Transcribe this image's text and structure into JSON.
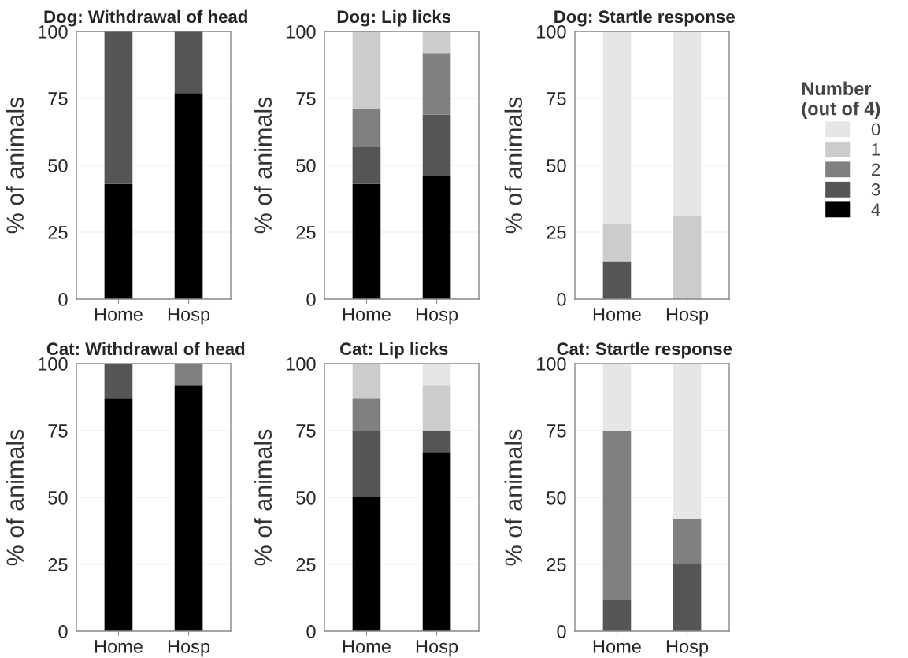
{
  "chart_data": [
    {
      "type": "bar",
      "stacked": true,
      "title": "Dog: Withdrawal of head",
      "ylabel": "% of animals",
      "categories": [
        "Home",
        "Hosp"
      ],
      "ylim": [
        0,
        100
      ],
      "yticks": [
        0,
        25,
        50,
        75,
        100
      ],
      "grid": "y",
      "series": [
        {
          "color": "#000000",
          "values": [
            43,
            77
          ]
        },
        {
          "color": "#555555",
          "values": [
            57,
            23
          ]
        }
      ]
    },
    {
      "type": "bar",
      "stacked": true,
      "title": "Dog: Lip licks",
      "ylabel": "% of animals",
      "categories": [
        "Home",
        "Hosp"
      ],
      "ylim": [
        0,
        100
      ],
      "yticks": [
        0,
        25,
        50,
        75,
        100
      ],
      "grid": "y",
      "series": [
        {
          "color": "#000000",
          "values": [
            43,
            46
          ]
        },
        {
          "color": "#555555",
          "values": [
            14,
            23
          ]
        },
        {
          "color": "#808080",
          "values": [
            14,
            23
          ]
        },
        {
          "color": "#cccccc",
          "values": [
            29,
            8
          ]
        }
      ]
    },
    {
      "type": "bar",
      "stacked": true,
      "title": "Dog: Startle response",
      "ylabel": "% of animals",
      "categories": [
        "Home",
        "Hosp"
      ],
      "ylim": [
        0,
        100
      ],
      "yticks": [
        0,
        25,
        50,
        75,
        100
      ],
      "grid": "y",
      "series": [
        {
          "color": "#555555",
          "values": [
            14,
            null
          ]
        },
        {
          "color": "#cccccc",
          "values": [
            14,
            31
          ]
        },
        {
          "color": "#e6e6e6",
          "values": [
            72,
            69
          ]
        }
      ]
    },
    {
      "type": "bar",
      "stacked": true,
      "title": "Cat: Withdrawal of head",
      "ylabel": "% of animals",
      "categories": [
        "Home",
        "Hosp"
      ],
      "ylim": [
        0,
        100
      ],
      "yticks": [
        0,
        25,
        50,
        75,
        100
      ],
      "grid": "y",
      "series": [
        {
          "color": "#000000",
          "values": [
            87,
            92
          ]
        },
        {
          "color": "#555555",
          "values": [
            13,
            null
          ]
        },
        {
          "color": "#808080",
          "values": [
            null,
            8
          ]
        }
      ]
    },
    {
      "type": "bar",
      "stacked": true,
      "title": "Cat: Lip licks",
      "ylabel": "% of animals",
      "categories": [
        "Home",
        "Hosp"
      ],
      "ylim": [
        0,
        100
      ],
      "yticks": [
        0,
        25,
        50,
        75,
        100
      ],
      "grid": "y",
      "legend": "right",
      "legend_title": "Number\n(out of 4)",
      "series": [
        {
          "name": "4",
          "color": "#000000",
          "values": [
            50,
            67
          ]
        },
        {
          "name": "3",
          "color": "#555555",
          "values": [
            25,
            8
          ]
        },
        {
          "name": "2",
          "color": "#808080",
          "values": [
            12,
            null
          ]
        },
        {
          "name": "1",
          "color": "#cccccc",
          "values": [
            13,
            17
          ]
        },
        {
          "name": "0",
          "color": "#e6e6e6",
          "values": [
            null,
            8
          ]
        }
      ]
    },
    {
      "type": "bar",
      "stacked": true,
      "title": "Cat: Startle response",
      "ylabel": "% of animals",
      "categories": [
        "Home",
        "Hosp"
      ],
      "ylim": [
        0,
        100
      ],
      "yticks": [
        0,
        25,
        50,
        75,
        100
      ],
      "grid": "y",
      "series": [
        {
          "color": "#555555",
          "values": [
            12,
            25
          ]
        },
        {
          "color": "#808080",
          "values": [
            63,
            17
          ]
        },
        {
          "color": "#e6e6e6",
          "values": [
            25,
            58
          ]
        }
      ]
    }
  ]
}
